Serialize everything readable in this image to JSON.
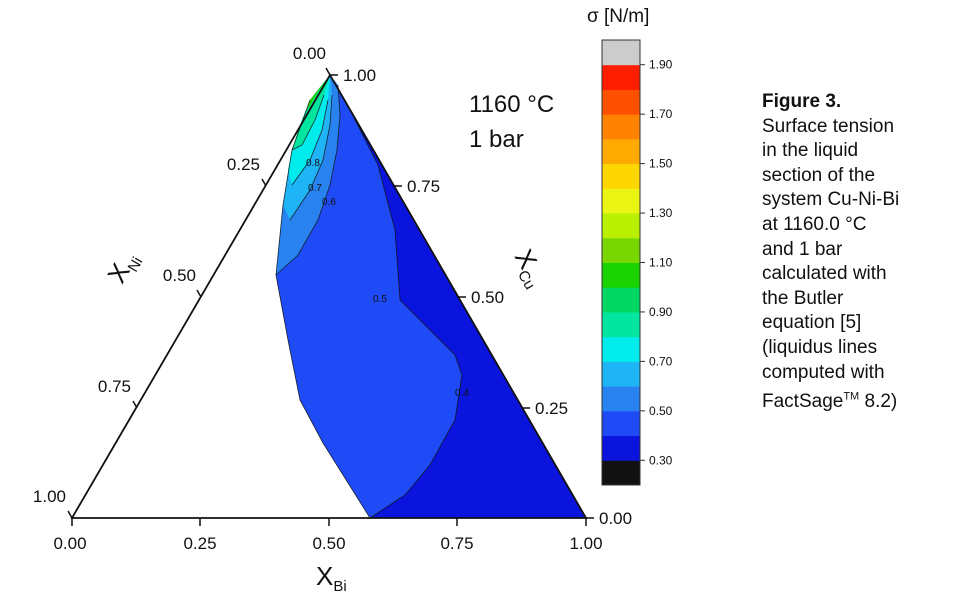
{
  "chart_data": {
    "type": "ternary-contour",
    "title": "",
    "conditions": [
      "1160 °C",
      "1 bar"
    ],
    "axes": {
      "bottom": {
        "label_main": "X",
        "label_sub": "Bi",
        "ticks": [
          "0.00",
          "0.25",
          "0.50",
          "0.75",
          "1.00"
        ]
      },
      "left": {
        "label_main": "X",
        "label_sub": "Ni",
        "ticks": [
          "0.00",
          "0.25",
          "0.50",
          "0.75",
          "1.00"
        ]
      },
      "right": {
        "label_main": "X",
        "label_sub": "Cu",
        "ticks": [
          "1.00",
          "0.75",
          "0.50",
          "0.25",
          "0.00"
        ]
      }
    },
    "contour_labels": [
      {
        "text": "0.8",
        "value": 0.8
      },
      {
        "text": "0.7",
        "value": 0.7
      },
      {
        "text": "0.6",
        "value": 0.6
      },
      {
        "text": "0.5",
        "value": 0.5
      },
      {
        "text": "0.4",
        "value": 0.4
      }
    ],
    "colorbar": {
      "title": "σ [N/m]",
      "tick_labels": [
        "1.90",
        "1.70",
        "1.50",
        "1.30",
        "1.10",
        "0.90",
        "0.70",
        "0.50",
        "0.30"
      ],
      "levels": [
        0.2,
        0.3,
        0.4,
        0.5,
        0.6,
        0.7,
        0.8,
        0.9,
        1.0,
        1.1,
        1.2,
        1.3,
        1.4,
        1.5,
        1.6,
        1.7,
        1.8,
        1.9,
        2.0
      ],
      "colors": [
        "#111111",
        "#0a14dc",
        "#1e4bf5",
        "#2882f0",
        "#1eb4f5",
        "#00ebeb",
        "#00e6a0",
        "#00d764",
        "#19d200",
        "#78d700",
        "#b9f000",
        "#ebf514",
        "#ffd700",
        "#ffaa00",
        "#ff8200",
        "#ff5000",
        "#ff1e00",
        "#cccccc"
      ]
    },
    "liquid_region_colors": {
      "v0_4": "#0a14dc",
      "v0_5": "#1e4bf5",
      "v0_6": "#2882f0",
      "v0_7": "#1eb4f5",
      "v0_8": "#00ebeb",
      "v0_9": "#00e6a0",
      "v1_0": "#19d200"
    }
  },
  "caption": {
    "title": "Figure 3.",
    "lines": [
      "Surface tension",
      "in the liquid",
      "section of the",
      "system Cu-Ni-Bi",
      "at 1160.0 °C",
      "and 1 bar",
      "calculated with",
      "the Butler",
      "equation [5]",
      "(liquidus lines",
      "computed with"
    ],
    "last_line_prefix": "FactSage",
    "last_line_sup": "TM",
    "last_line_suffix": " 8.2)"
  }
}
